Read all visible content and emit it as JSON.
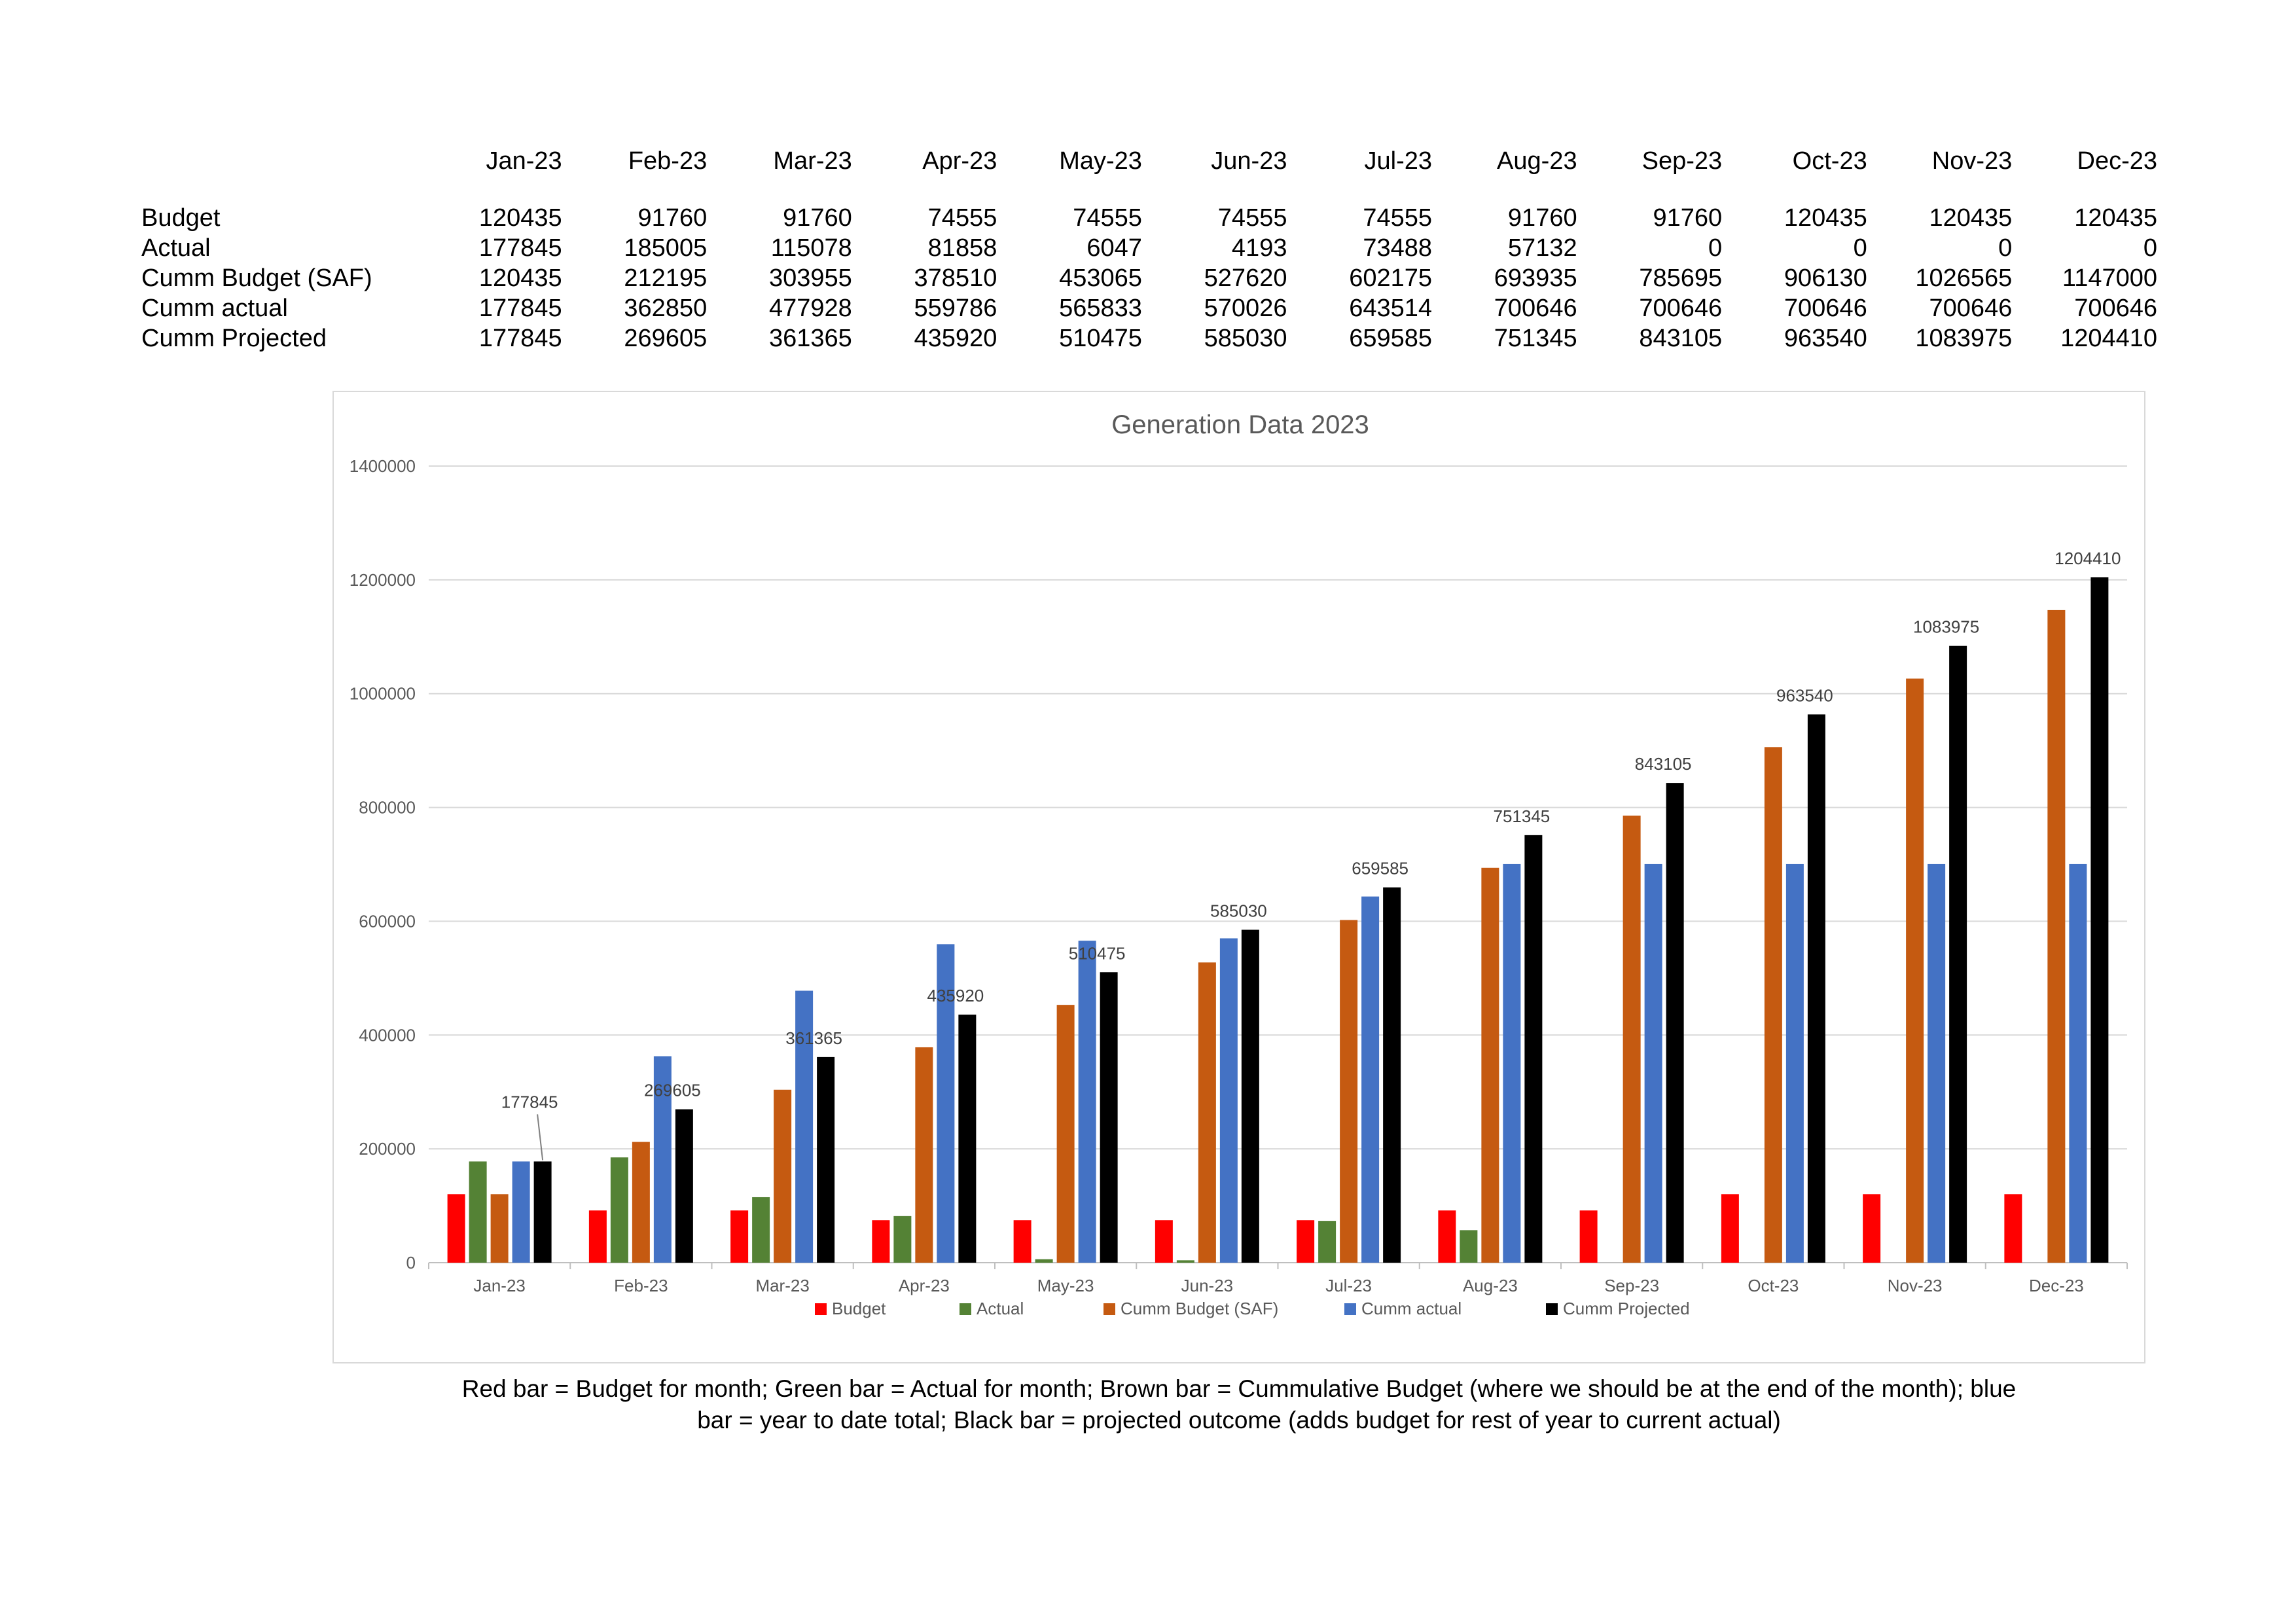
{
  "table": {
    "months": [
      "Jan-23",
      "Feb-23",
      "Mar-23",
      "Apr-23",
      "May-23",
      "Jun-23",
      "Jul-23",
      "Aug-23",
      "Sep-23",
      "Oct-23",
      "Nov-23",
      "Dec-23"
    ],
    "rows": [
      {
        "label": "Budget",
        "values": [
          "120435",
          "91760",
          "91760",
          "74555",
          "74555",
          "74555",
          "74555",
          "91760",
          "91760",
          "120435",
          "120435",
          "120435"
        ]
      },
      {
        "label": "Actual",
        "values": [
          "177845",
          "185005",
          "115078",
          "81858",
          "6047",
          "4193",
          "73488",
          "57132",
          "0",
          "0",
          "0",
          "0"
        ]
      },
      {
        "label": "Cumm  Budget (SAF)",
        "values": [
          "120435",
          "212195",
          "303955",
          "378510",
          "453065",
          "527620",
          "602175",
          "693935",
          "785695",
          "906130",
          "1026565",
          "1147000"
        ]
      },
      {
        "label": "Cumm actual",
        "values": [
          "177845",
          "362850",
          "477928",
          "559786",
          "565833",
          "570026",
          "643514",
          "700646",
          "700646",
          "700646",
          "700646",
          "700646"
        ]
      },
      {
        "label": "Cumm Projected",
        "values": [
          "177845",
          "269605",
          "361365",
          "435920",
          "510475",
          "585030",
          "659585",
          "751345",
          "843105",
          "963540",
          "1083975",
          "1204410"
        ]
      }
    ]
  },
  "chart_data": {
    "type": "bar",
    "title": "Generation Data 2023",
    "xlabel": "",
    "ylabel": "",
    "ylim": [
      0,
      1400000
    ],
    "yticks": [
      "0",
      "200000",
      "400000",
      "600000",
      "800000",
      "1000000",
      "1200000",
      "1400000"
    ],
    "categories": [
      "Jan-23",
      "Feb-23",
      "Mar-23",
      "Apr-23",
      "May-23",
      "Jun-23",
      "Jul-23",
      "Aug-23",
      "Sep-23",
      "Oct-23",
      "Nov-23",
      "Dec-23"
    ],
    "series": [
      {
        "name": "Budget",
        "color": "#ff0000",
        "values": [
          120435,
          91760,
          91760,
          74555,
          74555,
          74555,
          74555,
          91760,
          91760,
          120435,
          120435,
          120435
        ]
      },
      {
        "name": "Actual",
        "color": "#548235",
        "values": [
          177845,
          185005,
          115078,
          81858,
          6047,
          4193,
          73488,
          57132,
          0,
          0,
          0,
          0
        ]
      },
      {
        "name": "Cumm  Budget (SAF)",
        "color": "#c55a11",
        "values": [
          120435,
          212195,
          303955,
          378510,
          453065,
          527620,
          602175,
          693935,
          785695,
          906130,
          1026565,
          1147000
        ]
      },
      {
        "name": "Cumm actual",
        "color": "#4472c4",
        "values": [
          177845,
          362850,
          477928,
          559786,
          565833,
          570026,
          643514,
          700646,
          700646,
          700646,
          700646,
          700646
        ]
      },
      {
        "name": "Cumm Projected",
        "color": "#000000",
        "values": [
          177845,
          269605,
          361365,
          435920,
          510475,
          585030,
          659585,
          751345,
          843105,
          963540,
          1083975,
          1204410
        ],
        "data_labels": [
          "177845",
          "269605",
          "361365",
          "435920",
          "510475",
          "585030",
          "659585",
          "751345",
          "843105",
          "963540",
          "1083975",
          "1204410"
        ]
      }
    ],
    "grid": true,
    "legend": "bottom"
  },
  "caption": {
    "line1": "Red bar = Budget for month; Green bar = Actual for month; Brown bar = Cummulative Budget (where we should be at the end of the month); blue",
    "line2": "bar = year to date total; Black bar = projected outcome (adds budget for rest of year to current actual)"
  }
}
